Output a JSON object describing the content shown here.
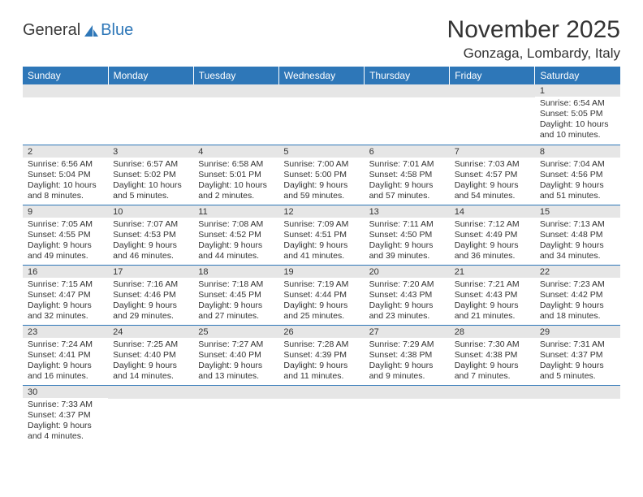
{
  "logo": {
    "text1": "General",
    "text2": "Blue"
  },
  "title": "November 2025",
  "location": "Gonzaga, Lombardy, Italy",
  "colors": {
    "header_bg": "#2e77b8",
    "header_text": "#ffffff",
    "daynum_bg": "#e6e6e6",
    "row_border": "#2e77b8",
    "text": "#333333",
    "page_bg": "#ffffff"
  },
  "weekdays": [
    "Sunday",
    "Monday",
    "Tuesday",
    "Wednesday",
    "Thursday",
    "Friday",
    "Saturday"
  ],
  "weeks": [
    [
      null,
      null,
      null,
      null,
      null,
      null,
      {
        "n": "1",
        "sr": "6:54 AM",
        "ss": "5:05 PM",
        "dl": "10 hours and 10 minutes."
      }
    ],
    [
      {
        "n": "2",
        "sr": "6:56 AM",
        "ss": "5:04 PM",
        "dl": "10 hours and 8 minutes."
      },
      {
        "n": "3",
        "sr": "6:57 AM",
        "ss": "5:02 PM",
        "dl": "10 hours and 5 minutes."
      },
      {
        "n": "4",
        "sr": "6:58 AM",
        "ss": "5:01 PM",
        "dl": "10 hours and 2 minutes."
      },
      {
        "n": "5",
        "sr": "7:00 AM",
        "ss": "5:00 PM",
        "dl": "9 hours and 59 minutes."
      },
      {
        "n": "6",
        "sr": "7:01 AM",
        "ss": "4:58 PM",
        "dl": "9 hours and 57 minutes."
      },
      {
        "n": "7",
        "sr": "7:03 AM",
        "ss": "4:57 PM",
        "dl": "9 hours and 54 minutes."
      },
      {
        "n": "8",
        "sr": "7:04 AM",
        "ss": "4:56 PM",
        "dl": "9 hours and 51 minutes."
      }
    ],
    [
      {
        "n": "9",
        "sr": "7:05 AM",
        "ss": "4:55 PM",
        "dl": "9 hours and 49 minutes."
      },
      {
        "n": "10",
        "sr": "7:07 AM",
        "ss": "4:53 PM",
        "dl": "9 hours and 46 minutes."
      },
      {
        "n": "11",
        "sr": "7:08 AM",
        "ss": "4:52 PM",
        "dl": "9 hours and 44 minutes."
      },
      {
        "n": "12",
        "sr": "7:09 AM",
        "ss": "4:51 PM",
        "dl": "9 hours and 41 minutes."
      },
      {
        "n": "13",
        "sr": "7:11 AM",
        "ss": "4:50 PM",
        "dl": "9 hours and 39 minutes."
      },
      {
        "n": "14",
        "sr": "7:12 AM",
        "ss": "4:49 PM",
        "dl": "9 hours and 36 minutes."
      },
      {
        "n": "15",
        "sr": "7:13 AM",
        "ss": "4:48 PM",
        "dl": "9 hours and 34 minutes."
      }
    ],
    [
      {
        "n": "16",
        "sr": "7:15 AM",
        "ss": "4:47 PM",
        "dl": "9 hours and 32 minutes."
      },
      {
        "n": "17",
        "sr": "7:16 AM",
        "ss": "4:46 PM",
        "dl": "9 hours and 29 minutes."
      },
      {
        "n": "18",
        "sr": "7:18 AM",
        "ss": "4:45 PM",
        "dl": "9 hours and 27 minutes."
      },
      {
        "n": "19",
        "sr": "7:19 AM",
        "ss": "4:44 PM",
        "dl": "9 hours and 25 minutes."
      },
      {
        "n": "20",
        "sr": "7:20 AM",
        "ss": "4:43 PM",
        "dl": "9 hours and 23 minutes."
      },
      {
        "n": "21",
        "sr": "7:21 AM",
        "ss": "4:43 PM",
        "dl": "9 hours and 21 minutes."
      },
      {
        "n": "22",
        "sr": "7:23 AM",
        "ss": "4:42 PM",
        "dl": "9 hours and 18 minutes."
      }
    ],
    [
      {
        "n": "23",
        "sr": "7:24 AM",
        "ss": "4:41 PM",
        "dl": "9 hours and 16 minutes."
      },
      {
        "n": "24",
        "sr": "7:25 AM",
        "ss": "4:40 PM",
        "dl": "9 hours and 14 minutes."
      },
      {
        "n": "25",
        "sr": "7:27 AM",
        "ss": "4:40 PM",
        "dl": "9 hours and 13 minutes."
      },
      {
        "n": "26",
        "sr": "7:28 AM",
        "ss": "4:39 PM",
        "dl": "9 hours and 11 minutes."
      },
      {
        "n": "27",
        "sr": "7:29 AM",
        "ss": "4:38 PM",
        "dl": "9 hours and 9 minutes."
      },
      {
        "n": "28",
        "sr": "7:30 AM",
        "ss": "4:38 PM",
        "dl": "9 hours and 7 minutes."
      },
      {
        "n": "29",
        "sr": "7:31 AM",
        "ss": "4:37 PM",
        "dl": "9 hours and 5 minutes."
      }
    ],
    [
      {
        "n": "30",
        "sr": "7:33 AM",
        "ss": "4:37 PM",
        "dl": "9 hours and 4 minutes."
      },
      null,
      null,
      null,
      null,
      null,
      null
    ]
  ],
  "labels": {
    "sunrise": "Sunrise: ",
    "sunset": "Sunset: ",
    "daylight": "Daylight: "
  }
}
